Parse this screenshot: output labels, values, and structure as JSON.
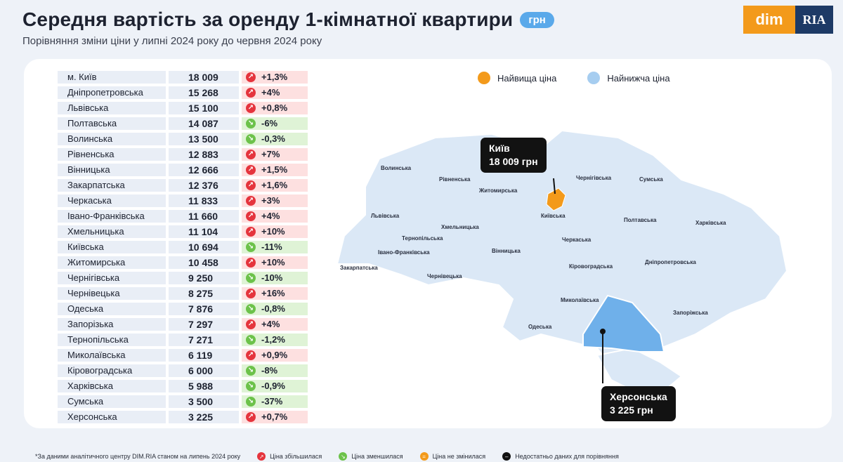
{
  "header": {
    "title": "Середня вартість за оренду 1-кімнатної квартири",
    "unit_badge": "грн",
    "subtitle": "Порівняння зміни ціни у липні 2024 року до червня 2024 року",
    "logo_left": "dim",
    "logo_right": "RIA"
  },
  "legend": {
    "highest": "Найвища ціна",
    "lowest": "Найнижча ціна"
  },
  "callouts": {
    "highest_name": "Київ",
    "highest_value": "18 009 грн",
    "lowest_name": "Херсонська",
    "lowest_value": "3 225 грн"
  },
  "map_labels": [
    "Волинська",
    "Рівненська",
    "Житомирська",
    "Чернігівська",
    "Сумська",
    "Львівська",
    "Київська",
    "Полтавська",
    "Харківська",
    "Тернопільська",
    "Хмельницька",
    "Черкаська",
    "Івано-Франківська",
    "Закарпатська",
    "Вінницька",
    "Кіровоградська",
    "Дніпропетровська",
    "Чернівецька",
    "Миколаївська",
    "Запоріжська",
    "Одеська"
  ],
  "footer": {
    "note": "*За даними аналітичного центру DIM.RIA станом на липень 2024 року",
    "up": "Ціна збільшилася",
    "down": "Ціна зменшилася",
    "same": "Ціна не змінилася",
    "none": "Недостатньо даних для порівняння"
  },
  "colors": {
    "increase": "#e5343d",
    "decrease": "#6cc24a",
    "highest": "#f39a1b",
    "lowest": "#a6cdf0",
    "map_fill": "#dbe8f6"
  },
  "chart_data": {
    "type": "table",
    "title": "Середня вартість за оренду 1-кімнатної квартири",
    "columns": [
      "region",
      "price_uah",
      "change"
    ],
    "rows": [
      {
        "region": "м. Київ",
        "price": "18 009",
        "change": "+1,3%",
        "dir": "up"
      },
      {
        "region": "Дніпропетровська",
        "price": "15 268",
        "change": "+4%",
        "dir": "up"
      },
      {
        "region": "Львівська",
        "price": "15 100",
        "change": "+0,8%",
        "dir": "up"
      },
      {
        "region": "Полтавська",
        "price": "14 087",
        "change": "-6%",
        "dir": "down"
      },
      {
        "region": "Волинська",
        "price": "13 500",
        "change": "-0,3%",
        "dir": "down"
      },
      {
        "region": "Рівненська",
        "price": "12 883",
        "change": "+7%",
        "dir": "up"
      },
      {
        "region": "Вінницька",
        "price": "12 666",
        "change": "+1,5%",
        "dir": "up"
      },
      {
        "region": "Закарпатська",
        "price": "12 376",
        "change": "+1,6%",
        "dir": "up"
      },
      {
        "region": "Черкаська",
        "price": "11 833",
        "change": "+3%",
        "dir": "up"
      },
      {
        "region": "Івано-Франківська",
        "price": "11 660",
        "change": "+4%",
        "dir": "up"
      },
      {
        "region": "Хмельницька",
        "price": "11 104",
        "change": "+10%",
        "dir": "up"
      },
      {
        "region": "Київська",
        "price": "10 694",
        "change": "-11%",
        "dir": "down"
      },
      {
        "region": "Житомирська",
        "price": "10 458",
        "change": "+10%",
        "dir": "up"
      },
      {
        "region": "Чернігівська",
        "price": "9 250",
        "change": "-10%",
        "dir": "down"
      },
      {
        "region": "Чернівецька",
        "price": "8 275",
        "change": "+16%",
        "dir": "up"
      },
      {
        "region": "Одеська",
        "price": "7 876",
        "change": "-0,8%",
        "dir": "down"
      },
      {
        "region": "Запорізька",
        "price": "7 297",
        "change": "+4%",
        "dir": "up"
      },
      {
        "region": "Тернопільська",
        "price": "7 271",
        "change": "-1,2%",
        "dir": "down"
      },
      {
        "region": "Миколаївська",
        "price": "6 119",
        "change": "+0,9%",
        "dir": "up"
      },
      {
        "region": "Кіровоградська",
        "price": "6 000",
        "change": "-8%",
        "dir": "down"
      },
      {
        "region": "Харківська",
        "price": "5 988",
        "change": "-0,9%",
        "dir": "down"
      },
      {
        "region": "Сумська",
        "price": "3 500",
        "change": "-37%",
        "dir": "down"
      },
      {
        "region": "Херсонська",
        "price": "3 225",
        "change": "+0,7%",
        "dir": "up"
      }
    ]
  }
}
